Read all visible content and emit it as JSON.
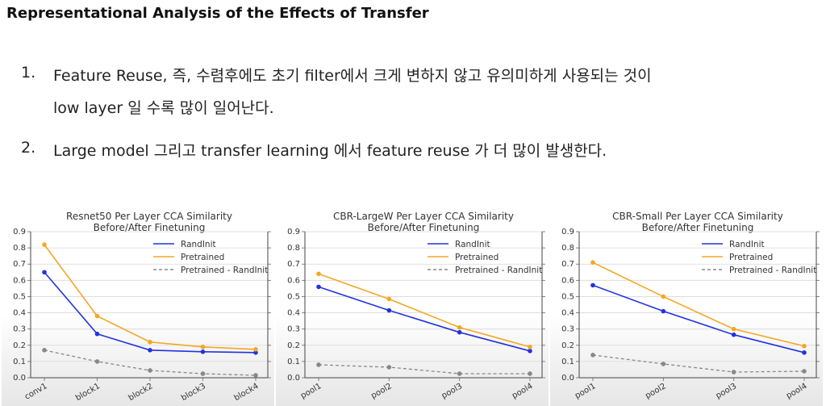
{
  "slide": {
    "title": "Representational Analysis of the Effects of Transfer",
    "bullets": [
      {
        "number": "1.",
        "lines": [
          "Feature Reuse, 즉, 수렴후에도 초기 filter에서 크게 변하지 않고 유의미하게 사용되는 것이",
          "low layer 일 수록 많이 일어난다."
        ]
      },
      {
        "number": "2.",
        "lines": [
          "Large model 그리고 transfer learning 에서 feature reuse 가 더 많이 발생한다."
        ]
      }
    ]
  },
  "colors": {
    "randinit": "#2233dd",
    "pretrained": "#f5a623",
    "difference": "#888888"
  },
  "chart_data": [
    {
      "type": "line",
      "title": "Resnet50 Per Layer CCA Similarity",
      "subtitle": "Before/After Finetuning",
      "categories": [
        "conv1",
        "block1",
        "block2",
        "block3",
        "block4"
      ],
      "ylim": [
        0,
        0.9
      ],
      "yticks": [
        "0.0",
        "0.1",
        "0.2",
        "0.3",
        "0.4",
        "0.5",
        "0.6",
        "0.7",
        "0.8",
        "0.9"
      ],
      "grid": true,
      "legend": "top-right",
      "series": [
        {
          "name": "RandInit",
          "style": "solid",
          "values": [
            0.65,
            0.27,
            0.17,
            0.16,
            0.155
          ]
        },
        {
          "name": "Pretrained",
          "style": "solid",
          "values": [
            0.82,
            0.38,
            0.22,
            0.19,
            0.175
          ]
        },
        {
          "name": "Pretrained - RandInit",
          "style": "dashed",
          "values": [
            0.17,
            0.1,
            0.045,
            0.025,
            0.015
          ]
        }
      ]
    },
    {
      "type": "line",
      "title": "CBR-LargeW Per Layer CCA Similarity",
      "subtitle": "Before/After Finetuning",
      "categories": [
        "pool1",
        "pool2",
        "pool3",
        "pool4"
      ],
      "ylim": [
        0,
        0.9
      ],
      "yticks": [
        "0.0",
        "0.1",
        "0.2",
        "0.3",
        "0.4",
        "0.5",
        "0.6",
        "0.7",
        "0.8",
        "0.9"
      ],
      "grid": true,
      "legend": "top-right",
      "series": [
        {
          "name": "RandInit",
          "style": "solid",
          "values": [
            0.56,
            0.415,
            0.28,
            0.165
          ]
        },
        {
          "name": "Pretrained",
          "style": "solid",
          "values": [
            0.64,
            0.485,
            0.31,
            0.19
          ]
        },
        {
          "name": "Pretrained - RandInit",
          "style": "dashed",
          "values": [
            0.08,
            0.065,
            0.025,
            0.025
          ]
        }
      ]
    },
    {
      "type": "line",
      "title": "CBR-Small Per Layer CCA Similarity",
      "subtitle": "Before/After Finetuning",
      "categories": [
        "pool1",
        "pool2",
        "pool3",
        "pool4"
      ],
      "ylim": [
        0,
        0.9
      ],
      "yticks": [
        "0.0",
        "0.1",
        "0.2",
        "0.3",
        "0.4",
        "0.5",
        "0.6",
        "0.7",
        "0.8",
        "0.9"
      ],
      "grid": true,
      "legend": "top-right",
      "series": [
        {
          "name": "RandInit",
          "style": "solid",
          "values": [
            0.57,
            0.41,
            0.265,
            0.155
          ]
        },
        {
          "name": "Pretrained",
          "style": "solid",
          "values": [
            0.71,
            0.5,
            0.3,
            0.195
          ]
        },
        {
          "name": "Pretrained - RandInit",
          "style": "dashed",
          "values": [
            0.14,
            0.085,
            0.035,
            0.04
          ]
        }
      ]
    }
  ]
}
